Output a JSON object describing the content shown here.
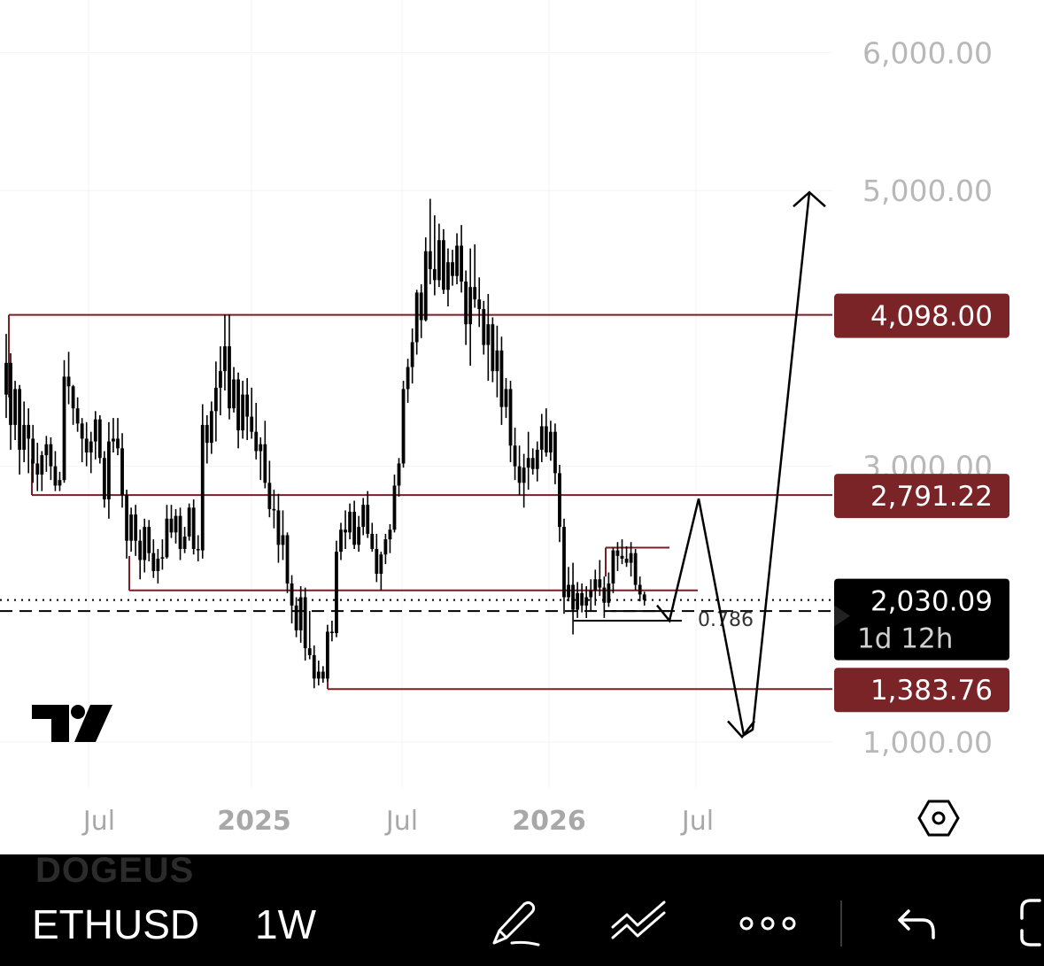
{
  "chart_data": {
    "type": "candlestick",
    "symbol": "ETHUSD",
    "interval": "1W",
    "y_axis": {
      "tick_labels": [
        "6,000.00",
        "5,000.00",
        "3,000.00",
        "1,000.00"
      ],
      "tick_values": [
        6000,
        5000,
        3000,
        1000
      ]
    },
    "x_axis": {
      "tick_labels": [
        "Jul",
        "2025",
        "Jul",
        "2026",
        "Jul"
      ]
    },
    "horizontal_levels": [
      {
        "label": "4,098.00",
        "value": 4098.0
      },
      {
        "label": "2,791.22",
        "value": 2791.22
      },
      {
        "label": "1,383.76",
        "value": 1383.76
      }
    ],
    "current_price": {
      "label": "2,030.09",
      "value": 2030.09,
      "countdown": "1d 12h"
    },
    "fib_label": "0.786",
    "colors": {
      "level": "#7a1f24",
      "tag_bg": "#7a2428",
      "current_tag_bg": "#000000",
      "candle": "#000000",
      "axis_text": "#b8b8b8"
    },
    "projection_path": [
      2030,
      2791,
      1050,
      5000
    ],
    "candles_ohlc": [
      [
        3520,
        3960,
        3350,
        3750
      ],
      [
        3750,
        3820,
        3120,
        3300
      ],
      [
        3300,
        3620,
        3190,
        3560
      ],
      [
        3560,
        3590,
        2940,
        3120
      ],
      [
        3120,
        3470,
        3030,
        3300
      ],
      [
        3300,
        3420,
        2950,
        3200
      ],
      [
        3200,
        3300,
        2880,
        3020
      ],
      [
        3020,
        3170,
        2820,
        2940
      ],
      [
        2940,
        3110,
        2820,
        3080
      ],
      [
        3080,
        3220,
        2960,
        3160
      ],
      [
        3160,
        3210,
        2900,
        3000
      ],
      [
        3000,
        3110,
        2820,
        2860
      ],
      [
        2860,
        2960,
        2820,
        2900
      ],
      [
        2900,
        3770,
        2880,
        3650
      ],
      [
        3650,
        3830,
        3450,
        3580
      ],
      [
        3580,
        3590,
        3300,
        3420
      ],
      [
        3420,
        3500,
        3250,
        3310
      ],
      [
        3310,
        3350,
        3030,
        3200
      ],
      [
        3200,
        3320,
        3000,
        3100
      ],
      [
        3100,
        3250,
        2950,
        3180
      ],
      [
        3180,
        3400,
        3050,
        3340
      ],
      [
        3340,
        3370,
        3020,
        3060
      ],
      [
        3060,
        3110,
        2700,
        2760
      ],
      [
        2760,
        3320,
        2620,
        3180
      ],
      [
        3180,
        3350,
        3100,
        3200
      ],
      [
        3200,
        3350,
        3080,
        3130
      ],
      [
        3130,
        3240,
        2700,
        2790
      ],
      [
        2790,
        2830,
        2330,
        2460
      ],
      [
        2460,
        2700,
        2380,
        2650
      ],
      [
        2650,
        2720,
        2350,
        2460
      ],
      [
        2460,
        2540,
        2180,
        2320
      ],
      [
        2320,
        2620,
        2230,
        2560
      ],
      [
        2560,
        2610,
        2310,
        2370
      ],
      [
        2370,
        2470,
        2190,
        2240
      ],
      [
        2240,
        2400,
        2150,
        2330
      ],
      [
        2330,
        2470,
        2250,
        2340
      ],
      [
        2340,
        2720,
        2330,
        2620
      ],
      [
        2620,
        2720,
        2480,
        2520
      ],
      [
        2520,
        2690,
        2440,
        2640
      ],
      [
        2640,
        2700,
        2320,
        2400
      ],
      [
        2400,
        2560,
        2370,
        2490
      ],
      [
        2490,
        2730,
        2460,
        2700
      ],
      [
        2700,
        2760,
        2360,
        2400
      ],
      [
        2400,
        2500,
        2310,
        2390
      ],
      [
        2390,
        3450,
        2330,
        3300
      ],
      [
        3300,
        3370,
        3020,
        3170
      ],
      [
        3170,
        3470,
        3090,
        3400
      ],
      [
        3400,
        3760,
        3180,
        3570
      ],
      [
        3570,
        3870,
        3370,
        3690
      ],
      [
        3690,
        4100,
        3550,
        3870
      ],
      [
        3870,
        4100,
        3340,
        3420
      ],
      [
        3420,
        3720,
        3390,
        3630
      ],
      [
        3630,
        3680,
        3130,
        3260
      ],
      [
        3260,
        3620,
        3200,
        3520
      ],
      [
        3520,
        3640,
        3190,
        3360
      ],
      [
        3360,
        3570,
        3200,
        3250
      ],
      [
        3250,
        3460,
        3050,
        3110
      ],
      [
        3110,
        3210,
        2900,
        3160
      ],
      [
        3160,
        3330,
        2840,
        2880
      ],
      [
        2880,
        3040,
        2630,
        2690
      ],
      [
        2690,
        2830,
        2550,
        2680
      ],
      [
        2680,
        2800,
        2300,
        2430
      ],
      [
        2430,
        2680,
        2320,
        2500
      ],
      [
        2500,
        2520,
        2080,
        2150
      ],
      [
        2150,
        2210,
        1860,
        1990
      ],
      [
        1990,
        2050,
        1760,
        1810
      ],
      [
        1810,
        2130,
        1720,
        2050
      ],
      [
        2050,
        2120,
        1590,
        1680
      ],
      [
        1680,
        1950,
        1600,
        1630
      ],
      [
        1630,
        1700,
        1390,
        1460
      ],
      [
        1460,
        1590,
        1410,
        1510
      ],
      [
        1510,
        1550,
        1430,
        1460
      ],
      [
        1460,
        1850,
        1440,
        1800
      ],
      [
        1800,
        1880,
        1730,
        1790
      ],
      [
        1790,
        2460,
        1760,
        2380
      ],
      [
        2380,
        2590,
        2320,
        2540
      ],
      [
        2540,
        2680,
        2400,
        2520
      ],
      [
        2520,
        2730,
        2470,
        2670
      ],
      [
        2670,
        2750,
        2400,
        2430
      ],
      [
        2430,
        2640,
        2380,
        2560
      ],
      [
        2560,
        2770,
        2500,
        2720
      ],
      [
        2720,
        2820,
        2480,
        2510
      ],
      [
        2510,
        2590,
        2380,
        2400
      ],
      [
        2400,
        2510,
        2160,
        2220
      ],
      [
        2220,
        2380,
        2100,
        2360
      ],
      [
        2360,
        2510,
        2290,
        2470
      ],
      [
        2470,
        2580,
        2370,
        2540
      ],
      [
        2540,
        2940,
        2520,
        2860
      ],
      [
        2860,
        3060,
        2780,
        3020
      ],
      [
        3020,
        3620,
        2990,
        3560
      ],
      [
        3560,
        3780,
        3460,
        3720
      ],
      [
        3720,
        4000,
        3600,
        3900
      ],
      [
        3900,
        4280,
        3810,
        4260
      ],
      [
        4260,
        4320,
        3930,
        4060
      ],
      [
        4060,
        4660,
        4050,
        4560
      ],
      [
        4560,
        4940,
        4320,
        4430
      ],
      [
        4430,
        4820,
        4240,
        4350
      ],
      [
        4350,
        4760,
        4300,
        4640
      ],
      [
        4640,
        4720,
        4250,
        4280
      ],
      [
        4280,
        4580,
        4160,
        4480
      ],
      [
        4480,
        4570,
        4310,
        4380
      ],
      [
        4380,
        4690,
        4320,
        4600
      ],
      [
        4600,
        4750,
        4260,
        4340
      ],
      [
        4340,
        4420,
        3880,
        4030
      ],
      [
        4030,
        4580,
        3730,
        4300
      ],
      [
        4300,
        4610,
        4150,
        4210
      ],
      [
        4210,
        4370,
        4010,
        4140
      ],
      [
        4140,
        4200,
        3810,
        3880
      ],
      [
        3880,
        4250,
        3620,
        4030
      ],
      [
        4030,
        4080,
        3610,
        3690
      ],
      [
        3690,
        4020,
        3500,
        3840
      ],
      [
        3840,
        3940,
        3300,
        3430
      ],
      [
        3430,
        3640,
        3350,
        3560
      ],
      [
        3560,
        3620,
        3030,
        3150
      ],
      [
        3150,
        3280,
        2900,
        3000
      ],
      [
        3000,
        3150,
        2790,
        2880
      ],
      [
        2880,
        3090,
        2700,
        2990
      ],
      [
        2990,
        3250,
        2830,
        3060
      ],
      [
        3060,
        3130,
        2940,
        2980
      ],
      [
        2980,
        3180,
        2890,
        3120
      ],
      [
        3120,
        3380,
        3030,
        3290
      ],
      [
        3290,
        3420,
        3070,
        3100
      ],
      [
        3100,
        3330,
        3040,
        3250
      ],
      [
        3250,
        3310,
        2870,
        2950
      ],
      [
        2950,
        3010,
        2450,
        2560
      ],
      [
        2560,
        2620,
        1930,
        2050
      ],
      [
        2050,
        2270,
        2020,
        2140
      ],
      [
        2140,
        2300,
        1780,
        1960
      ],
      [
        1960,
        2160,
        1900,
        2080
      ],
      [
        2080,
        2150,
        1940,
        1990
      ],
      [
        1990,
        2130,
        1900,
        2050
      ],
      [
        2050,
        2180,
        1950,
        2100
      ],
      [
        2100,
        2250,
        1990,
        2180
      ],
      [
        2180,
        2320,
        2060,
        2120
      ],
      [
        2120,
        2200,
        1900,
        2010
      ],
      [
        2010,
        2230,
        1980,
        2150
      ],
      [
        2150,
        2410,
        2080,
        2390
      ],
      [
        2390,
        2450,
        2240,
        2350
      ],
      [
        2350,
        2470,
        2290,
        2330
      ],
      [
        2330,
        2420,
        2270,
        2300
      ],
      [
        2300,
        2450,
        2200,
        2370
      ],
      [
        2370,
        2400,
        2100,
        2140
      ],
      [
        2140,
        2200,
        2020,
        2070
      ],
      [
        2070,
        2090,
        1990,
        2030
      ]
    ]
  }
}
